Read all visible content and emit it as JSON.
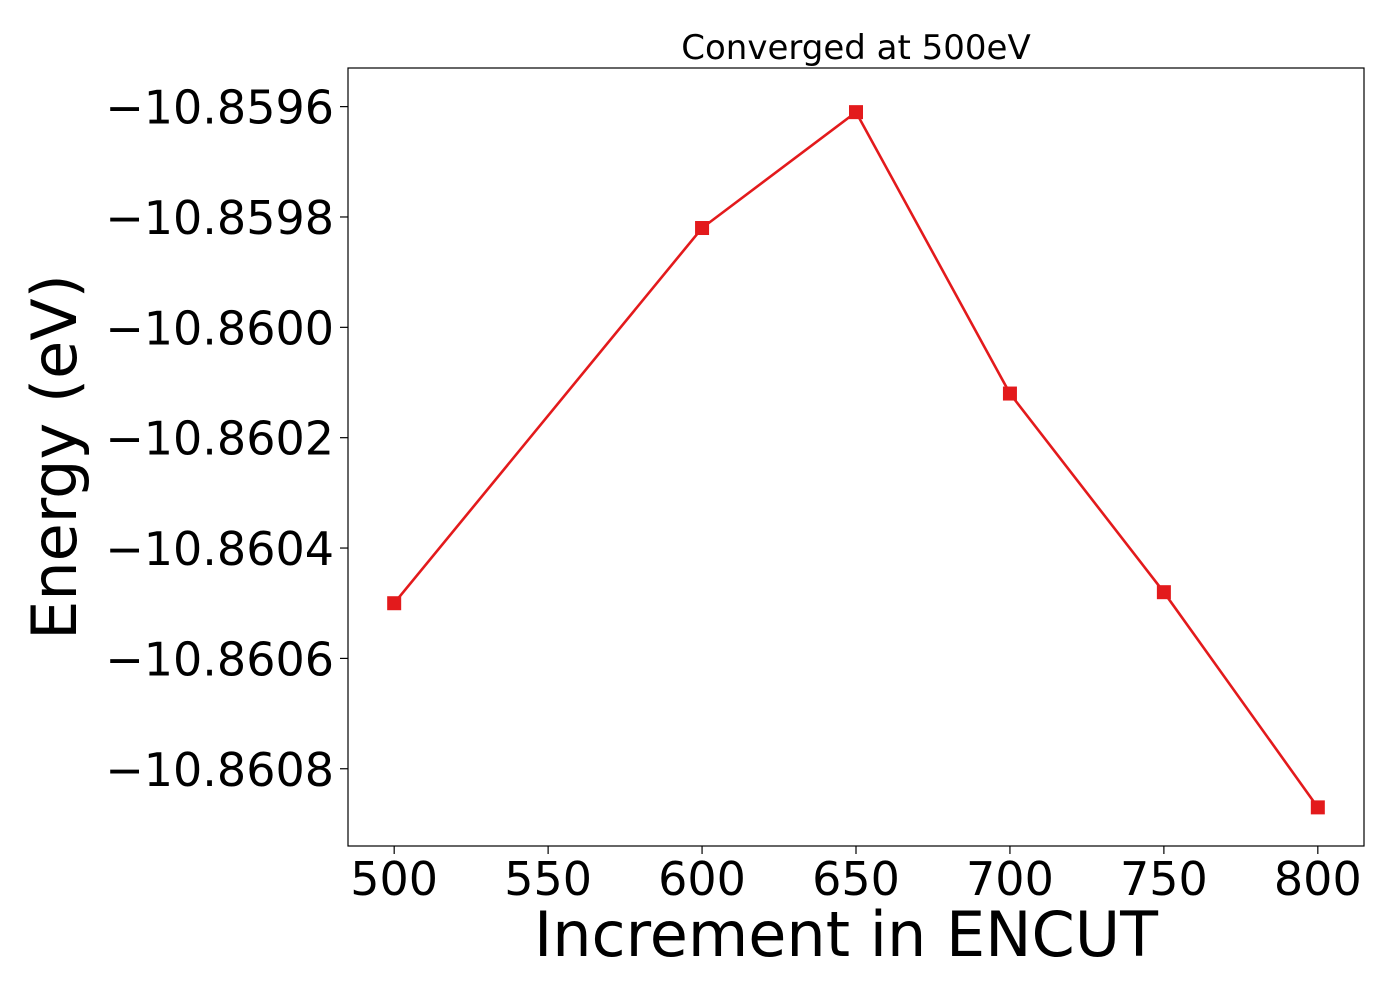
{
  "chart_data": {
    "type": "line",
    "title": "Converged at 500eV",
    "xlabel": "Increment in ENCUT",
    "ylabel": "Energy (eV)",
    "xlim": [
      485,
      815
    ],
    "ylim": [
      -10.86094,
      -10.85953
    ],
    "xticks": [
      500,
      550,
      600,
      650,
      700,
      750,
      800
    ],
    "xtick_labels": [
      "500",
      "550",
      "600",
      "650",
      "700",
      "750",
      "800"
    ],
    "yticks": [
      -10.8596,
      -10.8598,
      -10.86,
      -10.8602,
      -10.8604,
      -10.8606,
      -10.8608
    ],
    "ytick_labels": [
      "−10.8596",
      "−10.8598",
      "−10.8600",
      "−10.8602",
      "−10.8604",
      "−10.8606",
      "−10.8608"
    ],
    "grid": false,
    "series": [
      {
        "color": "#e31a1c",
        "marker": "square",
        "x": [
          500,
          600,
          650,
          700,
          750,
          800
        ],
        "y": [
          -10.8605,
          -10.85982,
          -10.85961,
          -10.86012,
          -10.86048,
          -10.86087
        ]
      }
    ]
  }
}
